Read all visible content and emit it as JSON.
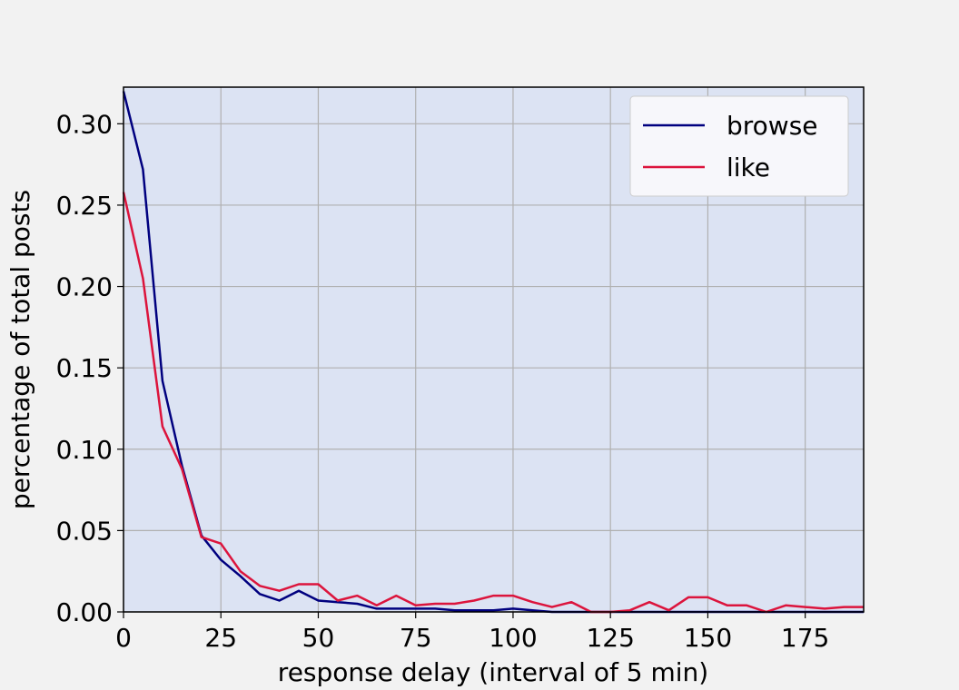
{
  "chart_data": {
    "type": "line",
    "title": "",
    "xlabel": "response delay (interval of 5 min)",
    "ylabel": "percentage of total posts",
    "xlim": [
      0,
      190
    ],
    "ylim": [
      0,
      0.3225
    ],
    "xticks": [
      0,
      25,
      50,
      75,
      100,
      125,
      150,
      175
    ],
    "xtick_labels": [
      "0",
      "25",
      "50",
      "75",
      "100",
      "125",
      "150",
      "175"
    ],
    "yticks": [
      0,
      0.05,
      0.1,
      0.15,
      0.2,
      0.25,
      0.3
    ],
    "ytick_labels": [
      "0.00",
      "0.05",
      "0.10",
      "0.15",
      "0.20",
      "0.25",
      "0.30"
    ],
    "grid": true,
    "legend_position": "top-right",
    "plot_background": "#dce3f3",
    "x": [
      0,
      5,
      10,
      15,
      20,
      25,
      30,
      35,
      40,
      45,
      50,
      55,
      60,
      65,
      70,
      75,
      80,
      85,
      90,
      95,
      100,
      105,
      110,
      115,
      120,
      125,
      130,
      135,
      140,
      145,
      150,
      155,
      160,
      165,
      170,
      175,
      180,
      185,
      190
    ],
    "series": [
      {
        "name": "browse",
        "color": "#00007f",
        "values": [
          0.32,
          0.272,
          0.142,
          0.09,
          0.047,
          0.032,
          0.022,
          0.011,
          0.007,
          0.013,
          0.007,
          0.006,
          0.005,
          0.002,
          0.002,
          0.002,
          0.002,
          0.001,
          0.001,
          0.001,
          0.002,
          0.001,
          0.0,
          0.0,
          0.0,
          0.0,
          0.0,
          0.0,
          0.0,
          0.0,
          0.0,
          0.0,
          0.0,
          0.0,
          0.0,
          0.0,
          0.0,
          0.0,
          0.0
        ]
      },
      {
        "name": "like",
        "color": "#dc143c",
        "values": [
          0.258,
          0.205,
          0.114,
          0.088,
          0.046,
          0.042,
          0.025,
          0.016,
          0.013,
          0.017,
          0.017,
          0.007,
          0.01,
          0.004,
          0.01,
          0.004,
          0.005,
          0.005,
          0.007,
          0.01,
          0.01,
          0.006,
          0.003,
          0.006,
          0.0,
          0.0,
          0.001,
          0.006,
          0.001,
          0.009,
          0.009,
          0.004,
          0.004,
          0.0,
          0.004,
          0.003,
          0.002,
          0.003,
          0.003
        ]
      }
    ]
  }
}
